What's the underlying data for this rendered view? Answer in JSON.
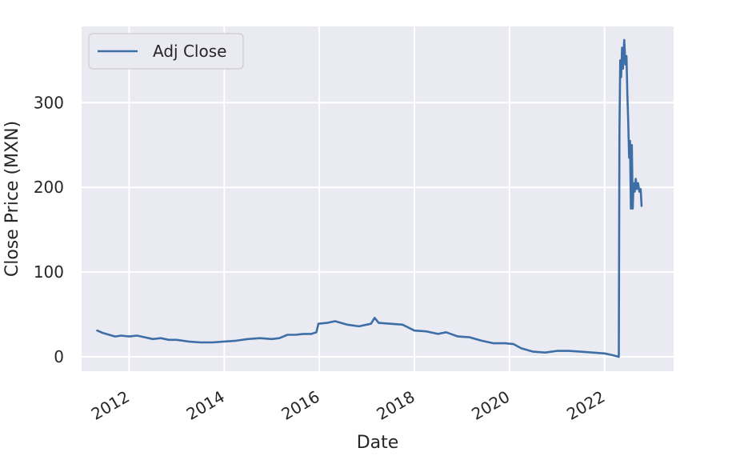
{
  "chart_data": {
    "type": "line",
    "xlabel": "Date",
    "ylabel": "Close Price (MXN)",
    "xlim": [
      "2011-01-01",
      "2023-06-15"
    ],
    "ylim": [
      -17,
      390
    ],
    "x_ticks": [
      "2012",
      "2014",
      "2016",
      "2018",
      "2020",
      "2022"
    ],
    "y_ticks": [
      0,
      100,
      200,
      300
    ],
    "grid": true,
    "legend_position": "top-left",
    "colors": {
      "plot_bg": "#eaeaf2",
      "grid": "#ffffff",
      "line": "#3d6fa6"
    },
    "series": [
      {
        "name": "Adj Close",
        "points": [
          [
            "2011-05-01",
            31
          ],
          [
            "2011-06-15",
            28
          ],
          [
            "2011-08-01",
            26
          ],
          [
            "2011-09-15",
            24
          ],
          [
            "2011-11-01",
            25
          ],
          [
            "2012-01-01",
            24
          ],
          [
            "2012-03-01",
            25
          ],
          [
            "2012-05-01",
            23
          ],
          [
            "2012-07-01",
            21
          ],
          [
            "2012-09-01",
            22
          ],
          [
            "2012-11-01",
            20
          ],
          [
            "2013-01-01",
            20
          ],
          [
            "2013-04-01",
            18
          ],
          [
            "2013-07-01",
            17
          ],
          [
            "2013-10-01",
            17
          ],
          [
            "2014-01-01",
            18
          ],
          [
            "2014-04-01",
            19
          ],
          [
            "2014-07-01",
            21
          ],
          [
            "2014-10-01",
            22
          ],
          [
            "2015-01-01",
            21
          ],
          [
            "2015-03-01",
            22
          ],
          [
            "2015-05-01",
            26
          ],
          [
            "2015-07-01",
            26
          ],
          [
            "2015-09-01",
            27
          ],
          [
            "2015-11-01",
            27
          ],
          [
            "2015-12-10",
            29
          ],
          [
            "2015-12-25",
            39
          ],
          [
            "2016-03-01",
            40
          ],
          [
            "2016-05-01",
            42
          ],
          [
            "2016-08-01",
            38
          ],
          [
            "2016-11-01",
            36
          ],
          [
            "2017-02-01",
            39
          ],
          [
            "2017-03-01",
            46
          ],
          [
            "2017-04-01",
            40
          ],
          [
            "2017-07-01",
            39
          ],
          [
            "2017-10-01",
            38
          ],
          [
            "2018-01-01",
            31
          ],
          [
            "2018-04-01",
            30
          ],
          [
            "2018-07-01",
            27
          ],
          [
            "2018-09-01",
            29
          ],
          [
            "2018-12-01",
            24
          ],
          [
            "2019-03-01",
            23
          ],
          [
            "2019-06-01",
            19
          ],
          [
            "2019-09-01",
            16
          ],
          [
            "2019-12-01",
            16
          ],
          [
            "2020-02-01",
            15
          ],
          [
            "2020-04-01",
            10
          ],
          [
            "2020-07-01",
            6
          ],
          [
            "2020-10-01",
            5
          ],
          [
            "2021-01-01",
            7
          ],
          [
            "2021-04-01",
            7
          ],
          [
            "2021-07-01",
            6
          ],
          [
            "2021-10-01",
            5
          ],
          [
            "2022-01-01",
            4
          ],
          [
            "2022-03-01",
            2
          ],
          [
            "2022-04-20",
            0
          ],
          [
            "2022-04-25",
            265
          ],
          [
            "2022-05-01",
            350
          ],
          [
            "2022-05-08",
            330
          ],
          [
            "2022-05-15",
            365
          ],
          [
            "2022-05-22",
            340
          ],
          [
            "2022-06-01",
            374
          ],
          [
            "2022-06-10",
            345
          ],
          [
            "2022-06-18",
            355
          ],
          [
            "2022-06-25",
            310
          ],
          [
            "2022-07-01",
            280
          ],
          [
            "2022-07-08",
            235
          ],
          [
            "2022-07-15",
            255
          ],
          [
            "2022-07-22",
            175
          ],
          [
            "2022-07-29",
            250
          ],
          [
            "2022-08-05",
            175
          ],
          [
            "2022-08-12",
            205
          ],
          [
            "2022-08-20",
            195
          ],
          [
            "2022-08-28",
            210
          ],
          [
            "2022-09-05",
            198
          ],
          [
            "2022-09-15",
            205
          ],
          [
            "2022-09-25",
            195
          ],
          [
            "2022-10-05",
            198
          ],
          [
            "2022-10-12",
            178
          ]
        ]
      }
    ]
  }
}
